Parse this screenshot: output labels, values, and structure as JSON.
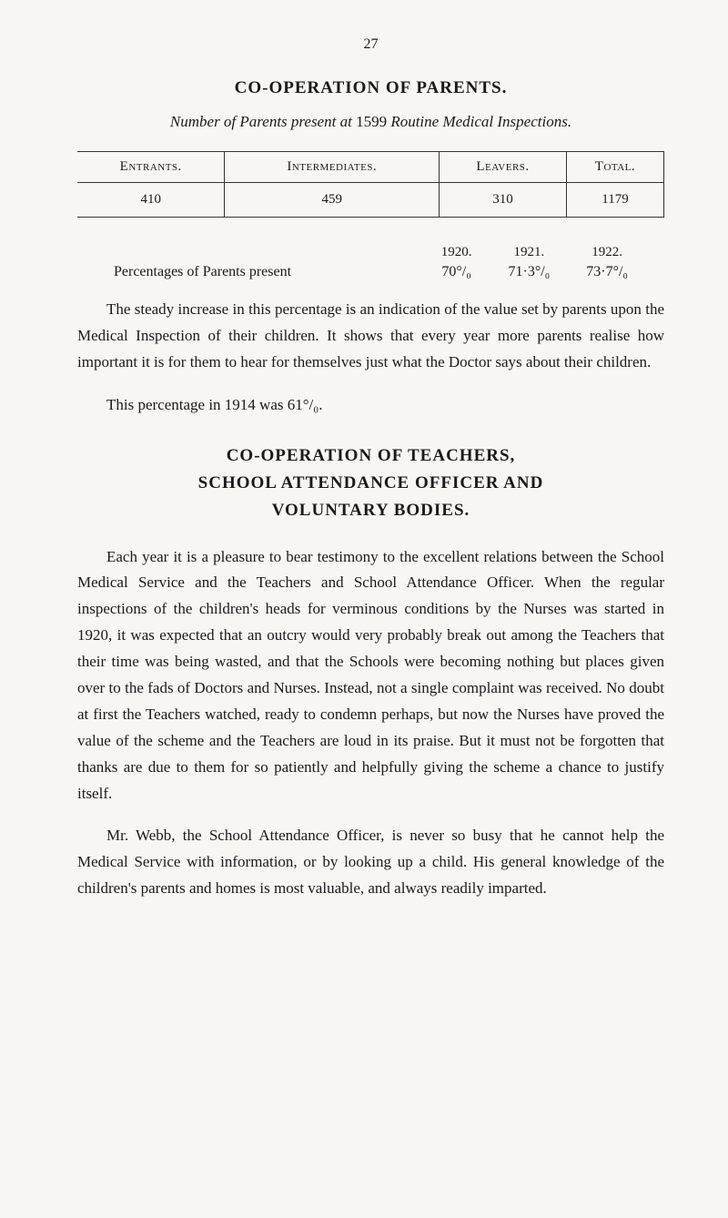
{
  "page_number": "27",
  "section1": {
    "title": "CO-OPERATION OF PARENTS.",
    "subtitle_italic_prefix": "Number of Parents present at ",
    "subtitle_number": "1599",
    "subtitle_italic_suffix": " Routine Medical Inspections."
  },
  "table": {
    "headers": {
      "entrants": "Entrants.",
      "intermediates": "Intermediates.",
      "leavers": "Leavers.",
      "total": "Total."
    },
    "values": {
      "entrants": "410",
      "intermediates": "459",
      "leavers": "310",
      "total": "1179"
    }
  },
  "percentages": {
    "label": "Percentages of Parents present",
    "cols": [
      {
        "year": "1920.",
        "value": "70°/₀"
      },
      {
        "year": "1921.",
        "value": "71·3°/₀"
      },
      {
        "year": "1922.",
        "value": "73·7°/₀"
      }
    ]
  },
  "para1": "The steady increase in this percentage is an indication of the value set by parents upon the Medical Inspection of their children. It shows that every year more parents realise how important it is for them to hear for themselves just what the Doctor says about their children.",
  "para2": "This percentage in 1914 was 61°/₀.",
  "section2": {
    "line1": "CO-OPERATION OF TEACHERS,",
    "line2": "SCHOOL ATTENDANCE OFFICER AND",
    "line3": "VOLUNTARY BODIES."
  },
  "para3": "Each year it is a pleasure to bear testimony to the excellent relations between the School Medical Service and the Teachers and School Attendance Officer. When the regular inspections of the children's heads for verminous conditions by the Nurses was started in 1920, it was expected that an outcry would very probably break out among the Teachers that their time was being wasted, and that the Schools were becoming nothing but places given over to the fads of Doctors and Nurses. Instead, not a single complaint was received. No doubt at first the Teachers watched, ready to condemn perhaps, but now the Nurses have proved the value of the scheme and the Teachers are loud in its praise. But it must not be forgotten that thanks are due to them for so patiently and helpfully giving the scheme a chance to justify itself.",
  "para4": "Mr. Webb, the School Attendance Officer, is never so busy that he cannot help the Medical Service with information, or by looking up a child. His general knowledge of the children's parents and homes is most valuable, and always readily imparted."
}
